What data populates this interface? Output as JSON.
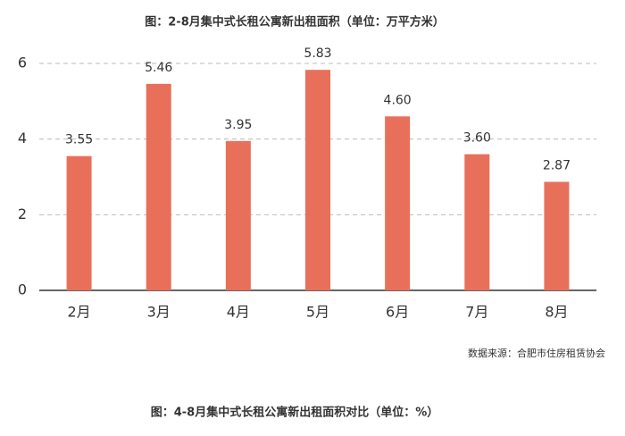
{
  "chart_data": {
    "type": "bar",
    "title": "图：2-8月集中式长租公寓新出租面积（单位：万平方米）",
    "categories": [
      "2月",
      "3月",
      "4月",
      "5月",
      "6月",
      "7月",
      "8月"
    ],
    "values": [
      3.55,
      5.46,
      3.95,
      5.83,
      4.6,
      3.6,
      2.87
    ],
    "value_labels": [
      "3.55",
      "5.46",
      "3.95",
      "5.83",
      "4.60",
      "3.60",
      "2.87"
    ],
    "color": "#e8705a",
    "ylim": [
      0,
      6
    ],
    "yticks": [
      0,
      2,
      4,
      6
    ],
    "grid": true
  },
  "footer": {
    "source": "数据来源：合肥市住房租赁协会",
    "next_title": "图：4-8月集中式长租公寓新出租面积对比（单位：%）"
  }
}
